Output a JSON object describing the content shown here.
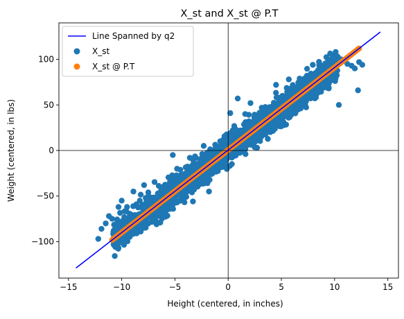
{
  "chart_data": {
    "type": "scatter",
    "title": "X_st and X_st @ P.T",
    "xlabel": "Height (centered, in inches)",
    "ylabel": "Weight (centered, in lbs)",
    "xlim": [
      -15.9,
      16.0
    ],
    "ylim": [
      -140,
      140
    ],
    "xticks": [
      -15,
      -10,
      -5,
      0,
      5,
      10,
      15
    ],
    "yticks": [
      -100,
      -50,
      0,
      50,
      100
    ],
    "xtick_labels": [
      "−15",
      "−10",
      "−5",
      "0",
      "5",
      "10",
      "15"
    ],
    "ytick_labels": [
      "−100",
      "−50",
      "0",
      "50",
      "100"
    ],
    "grid": false,
    "legend_position": "top-left",
    "reference_lines": {
      "x": 0,
      "y": 0
    },
    "series": [
      {
        "name": "Line Spanned by q2",
        "kind": "line",
        "color": "#0000ff",
        "x": [
          -14.3,
          14.3
        ],
        "y": [
          -129,
          130
        ]
      },
      {
        "name": "X_st",
        "kind": "scatter",
        "color": "#1f77b4",
        "cloud": {
          "x_range": [
            -10.8,
            10.3
          ],
          "slope": 9.0,
          "spread": 14
        },
        "x": [
          -12.2,
          -11.9,
          -11.5,
          -11.2,
          -10.9,
          -10.6,
          -10.3,
          -10.0,
          -9.5,
          -8.9,
          -8.3,
          -7.9,
          -7.5,
          -5.2,
          -4.8,
          -3.6,
          -2.9,
          -2.3,
          -1.8,
          0.2,
          0.9,
          1.6,
          2.1,
          4.5,
          5.1,
          5.7,
          7.4,
          8.2,
          8.8,
          9.3,
          9.8,
          10.2,
          10.6,
          11.2,
          11.6,
          11.9,
          12.3,
          12.6,
          12.2,
          10.4
        ],
        "y": [
          -97,
          -86,
          -80,
          -72,
          -75,
          -86,
          -62,
          -55,
          -62,
          -45,
          -55,
          -38,
          -46,
          -5,
          -20,
          -8,
          -18,
          -30,
          -45,
          41,
          57,
          40,
          52,
          72,
          60,
          78,
          82,
          85,
          88,
          89,
          92,
          95,
          100,
          95,
          93,
          90,
          97,
          94,
          66,
          50
        ]
      },
      {
        "name": "X_st @ P.T",
        "kind": "scatter",
        "color": "#ff7f0e",
        "on_line": true,
        "x_range": [
          -10.9,
          12.3
        ]
      }
    ]
  }
}
